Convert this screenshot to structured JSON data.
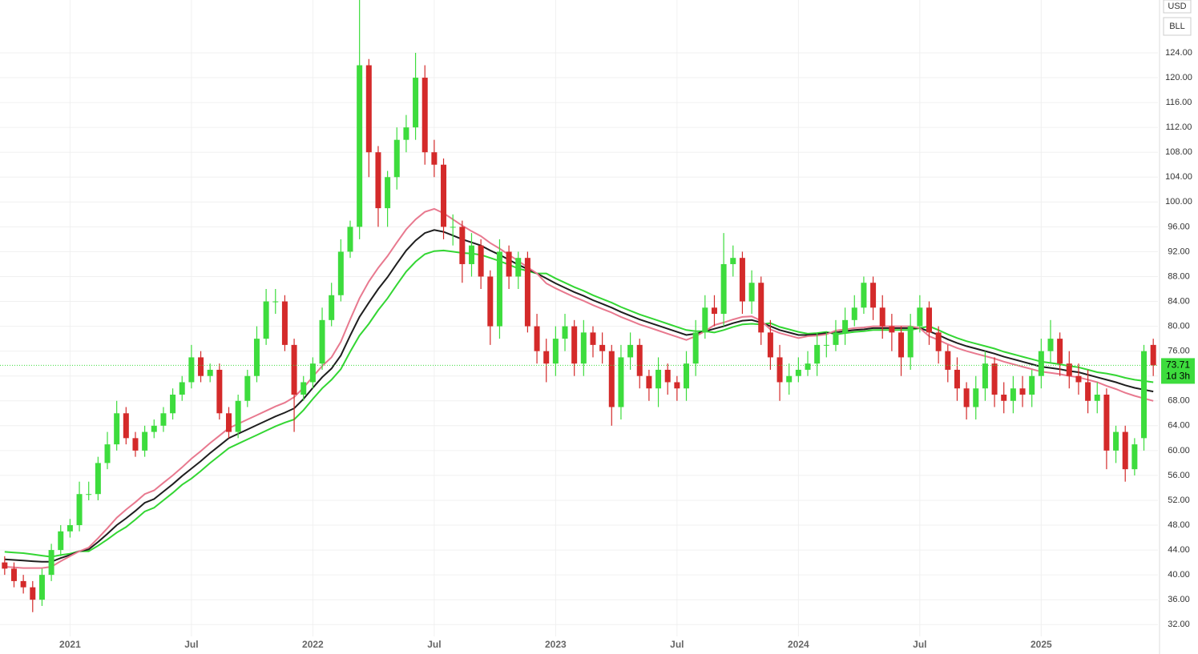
{
  "chart_data": {
    "type": "candlestick",
    "currency": "USD",
    "symbol": "BLL",
    "countdown": "1d 3h",
    "categories": [
      null,
      null,
      null,
      null,
      null,
      null,
      null,
      "2021",
      null,
      null,
      null,
      null,
      null,
      null,
      null,
      null,
      null,
      null,
      null,
      null,
      "Jul",
      null,
      null,
      null,
      null,
      null,
      null,
      null,
      null,
      null,
      null,
      null,
      null,
      "2022",
      null,
      null,
      null,
      null,
      null,
      null,
      null,
      null,
      null,
      null,
      null,
      null,
      "Jul",
      null,
      null,
      null,
      null,
      null,
      null,
      null,
      null,
      null,
      null,
      null,
      null,
      "2023",
      null,
      null,
      null,
      null,
      null,
      null,
      null,
      null,
      null,
      null,
      null,
      null,
      "Jul",
      null,
      null,
      null,
      null,
      null,
      null,
      null,
      null,
      null,
      null,
      null,
      null,
      "2024",
      null,
      null,
      null,
      null,
      null,
      null,
      null,
      null,
      null,
      null,
      null,
      null,
      "Jul",
      null,
      null,
      null,
      null,
      null,
      null,
      null,
      null,
      null,
      null,
      null,
      null,
      "2025",
      null,
      null,
      null,
      null,
      null,
      null,
      null,
      null,
      null,
      null,
      null,
      null
    ],
    "open": [
      42,
      41,
      39,
      38,
      36,
      40,
      44,
      47,
      48,
      53,
      53,
      58,
      61,
      66,
      62,
      60,
      63,
      64,
      66,
      69,
      71,
      75,
      72,
      73,
      66,
      63,
      68,
      72,
      78,
      84,
      84,
      77,
      69,
      71,
      74,
      81,
      85,
      92,
      96,
      122,
      108,
      99,
      104,
      110,
      112,
      120,
      108,
      106,
      96,
      96,
      90,
      93,
      88,
      80,
      92,
      88,
      91,
      80,
      76,
      74,
      78,
      80,
      74,
      79,
      77,
      76,
      67,
      75,
      77,
      72,
      70,
      73,
      71,
      70,
      74,
      79,
      83,
      82,
      90,
      91,
      84,
      87,
      79,
      75,
      71,
      72,
      73,
      74,
      77,
      77,
      79,
      81,
      83,
      87,
      83,
      80,
      79,
      75,
      80,
      83,
      79,
      76,
      73,
      70,
      67,
      70,
      74,
      69,
      68,
      70,
      69,
      72,
      76,
      78,
      74,
      72,
      71,
      68,
      69,
      60,
      63,
      57,
      62,
      77
    ],
    "high": [
      43,
      42,
      40,
      39,
      41,
      45,
      48,
      49,
      55,
      55,
      59,
      63,
      68,
      67,
      63,
      64,
      65,
      67,
      70,
      72,
      77,
      76,
      74,
      74,
      67,
      69,
      73,
      80,
      86,
      86,
      85,
      78,
      72,
      75,
      83,
      87,
      94,
      97,
      134,
      123,
      109,
      105,
      112,
      114,
      124,
      122,
      110,
      107,
      98,
      97,
      95,
      94,
      89,
      94,
      93,
      92,
      92,
      82,
      78,
      80,
      82,
      81,
      81,
      80,
      79,
      77,
      77,
      79,
      78,
      73,
      75,
      74,
      72,
      76,
      81,
      85,
      85,
      95,
      93,
      92,
      89,
      88,
      81,
      77,
      74,
      75,
      76,
      79,
      79,
      81,
      83,
      85,
      88,
      88,
      85,
      82,
      80,
      82,
      85,
      84,
      80,
      77,
      75,
      71,
      72,
      76,
      75,
      71,
      72,
      72,
      73,
      78,
      81,
      79,
      76,
      74,
      73,
      71,
      70,
      64,
      64,
      62,
      77,
      78
    ],
    "low": [
      40,
      38,
      37,
      34,
      35,
      39,
      43,
      46,
      47,
      52,
      52,
      57,
      60,
      61,
      59,
      59,
      62,
      63,
      65,
      68,
      70,
      71,
      71,
      65,
      62,
      62,
      67,
      71,
      77,
      82,
      76,
      63,
      68,
      70,
      73,
      80,
      84,
      91,
      94,
      104,
      96,
      96,
      102,
      108,
      110,
      106,
      104,
      94,
      93,
      87,
      88,
      86,
      77,
      78,
      86,
      86,
      79,
      74,
      71,
      72,
      76,
      72,
      72,
      75,
      74,
      64,
      65,
      73,
      70,
      68,
      67,
      69,
      68,
      68,
      72,
      78,
      80,
      80,
      88,
      82,
      82,
      77,
      73,
      68,
      69,
      71,
      72,
      72,
      75,
      76,
      77,
      80,
      82,
      81,
      78,
      76,
      72,
      73,
      79,
      77,
      74,
      71,
      68,
      65,
      65,
      68,
      67,
      66,
      66,
      67,
      67,
      70,
      74,
      72,
      70,
      69,
      66,
      66,
      57,
      58,
      55,
      56,
      60,
      72
    ],
    "close": [
      41,
      39,
      38,
      36,
      40,
      44,
      47,
      48,
      53,
      53,
      58,
      61,
      66,
      62,
      60,
      63,
      64,
      66,
      69,
      71,
      75,
      72,
      73,
      66,
      63,
      68,
      72,
      78,
      84,
      84,
      77,
      69,
      71,
      74,
      81,
      85,
      92,
      96,
      122,
      108,
      99,
      104,
      110,
      112,
      120,
      108,
      106,
      96,
      96,
      90,
      93,
      88,
      80,
      92,
      88,
      91,
      80,
      76,
      74,
      78,
      80,
      74,
      79,
      77,
      76,
      67,
      75,
      77,
      72,
      70,
      73,
      71,
      70,
      74,
      79,
      83,
      82,
      90,
      91,
      84,
      87,
      79,
      75,
      71,
      72,
      73,
      74,
      77,
      77,
      79,
      81,
      83,
      87,
      83,
      80,
      79,
      75,
      80,
      83,
      79,
      76,
      73,
      70,
      67,
      70,
      74,
      69,
      68,
      70,
      69,
      72,
      76,
      78,
      74,
      72,
      71,
      68,
      69,
      60,
      63,
      57,
      61,
      76,
      73.71
    ],
    "up_color": "#3ddc3d",
    "down_color": "#d42a2a",
    "series": [
      {
        "color": "#33d633",
        "values": [
          43.7,
          43.6,
          43.5,
          43.3,
          43.1,
          42.9,
          43.2,
          43.4,
          43.8,
          43.8,
          44.7,
          45.7,
          46.8,
          47.7,
          48.9,
          50.2,
          50.8,
          52.0,
          53.2,
          54.5,
          55.5,
          56.7,
          58.0,
          59.2,
          60.4,
          61.1,
          61.8,
          62.5,
          63.2,
          63.9,
          64.5,
          65.0,
          66.5,
          68.3,
          70.0,
          71.4,
          73.1,
          75.9,
          78.5,
          80.4,
          82.6,
          84.5,
          86.7,
          88.8,
          90.4,
          91.6,
          92.1,
          92.2,
          92.0,
          91.8,
          91.7,
          91.5,
          91.0,
          90.5,
          89.9,
          89.3,
          88.9,
          88.5,
          88.5,
          87.7,
          87.0,
          86.3,
          85.7,
          85.0,
          84.4,
          83.8,
          83.1,
          82.5,
          81.9,
          81.4,
          80.9,
          80.4,
          79.9,
          79.4,
          79.2,
          79.2,
          79.0,
          79.4,
          79.9,
          80.3,
          80.4,
          80.3,
          80.5,
          79.9,
          79.5,
          79.1,
          78.8,
          78.9,
          79.1,
          78.7,
          78.9,
          79.1,
          79.2,
          79.4,
          79.4,
          79.4,
          79.4,
          79.4,
          79.7,
          80.0,
          79.4,
          78.7,
          78.1,
          77.6,
          77.2,
          76.8,
          76.4,
          75.9,
          75.5,
          75.1,
          74.7,
          74.3,
          74.1,
          73.9,
          73.6,
          73.4,
          73.0,
          72.6,
          72.4,
          72.1,
          71.7,
          71.4,
          71.2,
          71.0
        ]
      },
      {
        "color": "#1e1e1e",
        "values": [
          42.5,
          42.4,
          42.3,
          42.2,
          42.1,
          42.1,
          42.7,
          43.2,
          43.8,
          44.1,
          45.3,
          46.6,
          48.0,
          49.1,
          50.3,
          51.6,
          52.2,
          53.4,
          54.6,
          55.9,
          57.1,
          58.3,
          59.6,
          60.8,
          62.0,
          62.7,
          63.4,
          64.1,
          64.8,
          65.5,
          66.1,
          66.8,
          68.3,
          70.1,
          71.8,
          73.2,
          75.3,
          78.5,
          81.5,
          83.8,
          86.0,
          87.9,
          90.1,
          92.2,
          93.8,
          95.0,
          95.5,
          95.2,
          94.6,
          94.0,
          93.5,
          93.0,
          92.2,
          91.5,
          90.7,
          89.9,
          89.2,
          88.5,
          87.7,
          86.9,
          86.2,
          85.5,
          84.9,
          84.2,
          83.6,
          83.0,
          82.3,
          81.7,
          81.1,
          80.6,
          80.1,
          79.6,
          79.1,
          78.6,
          78.8,
          79.2,
          79.6,
          80.0,
          80.5,
          80.9,
          81.0,
          80.6,
          80.0,
          79.4,
          79.0,
          78.6,
          78.6,
          78.7,
          78.9,
          79.0,
          79.2,
          79.4,
          79.5,
          79.7,
          79.7,
          79.7,
          79.7,
          79.7,
          79.7,
          79.2,
          78.6,
          77.9,
          77.3,
          76.8,
          76.4,
          76.0,
          75.6,
          75.1,
          74.7,
          74.3,
          73.9,
          73.5,
          73.3,
          73.1,
          72.8,
          72.6,
          72.2,
          71.8,
          71.4,
          71.0,
          70.5,
          70.1,
          69.8,
          69.5
        ]
      },
      {
        "color": "#e8798f",
        "values": [
          41.3,
          41.2,
          41.1,
          41.1,
          41.1,
          41.3,
          42.2,
          43.0,
          43.8,
          44.4,
          45.9,
          47.5,
          49.2,
          50.5,
          51.7,
          53.0,
          53.6,
          54.8,
          56.0,
          57.3,
          58.7,
          59.9,
          61.2,
          62.4,
          63.6,
          64.3,
          65.0,
          65.7,
          66.4,
          67.1,
          67.7,
          68.6,
          70.1,
          71.9,
          73.6,
          75.0,
          77.5,
          81.1,
          84.5,
          87.2,
          89.4,
          91.3,
          93.5,
          95.6,
          97.2,
          98.4,
          98.9,
          98.2,
          97.2,
          96.2,
          95.3,
          94.5,
          93.4,
          92.5,
          91.5,
          90.5,
          89.5,
          88.5,
          86.9,
          86.1,
          85.4,
          84.7,
          84.1,
          83.4,
          82.8,
          82.2,
          81.5,
          80.9,
          80.3,
          79.8,
          79.3,
          78.8,
          78.3,
          77.8,
          78.4,
          79.2,
          80.2,
          80.6,
          81.1,
          81.5,
          81.6,
          80.9,
          79.5,
          78.9,
          78.5,
          78.1,
          78.4,
          78.5,
          78.7,
          79.3,
          79.5,
          79.7,
          79.8,
          80.0,
          80.0,
          80.0,
          80.0,
          80.0,
          79.7,
          78.4,
          77.8,
          77.1,
          76.5,
          76.0,
          75.6,
          75.2,
          74.8,
          74.3,
          73.9,
          73.5,
          73.1,
          72.7,
          72.5,
          72.3,
          72.0,
          71.8,
          71.4,
          71.0,
          70.4,
          69.9,
          69.3,
          68.8,
          68.4,
          68.0
        ]
      }
    ],
    "ylim": [
      30.1,
      132.5
    ],
    "yticks": [
      {
        "value": 32,
        "label": "32.00"
      },
      {
        "value": 36,
        "label": "36.00"
      },
      {
        "value": 40,
        "label": "40.00"
      },
      {
        "value": 44,
        "label": "44.00"
      },
      {
        "value": 48,
        "label": "48.00"
      },
      {
        "value": 52,
        "label": "52.00"
      },
      {
        "value": 56,
        "label": "56.00"
      },
      {
        "value": 60,
        "label": "60.00"
      },
      {
        "value": 64,
        "label": "64.00"
      },
      {
        "value": 68,
        "label": "68.00"
      },
      {
        "value": 72,
        "label": "72.00"
      },
      {
        "value": 76,
        "label": "76.00"
      },
      {
        "value": 80,
        "label": "80.00"
      },
      {
        "value": 84,
        "label": "84.00"
      },
      {
        "value": 88,
        "label": "88.00"
      },
      {
        "value": 92,
        "label": "92.00"
      },
      {
        "value": 96,
        "label": "96.00"
      },
      {
        "value": 100,
        "label": "100.00"
      },
      {
        "value": 104,
        "label": "104.00"
      },
      {
        "value": 108,
        "label": "108.00"
      },
      {
        "value": 112,
        "label": "112.00"
      },
      {
        "value": 116,
        "label": "116.00"
      },
      {
        "value": 120,
        "label": "120.00"
      },
      {
        "value": 124,
        "label": "124.00"
      }
    ],
    "grid": true,
    "price_line_color": "#3ddc3d"
  }
}
